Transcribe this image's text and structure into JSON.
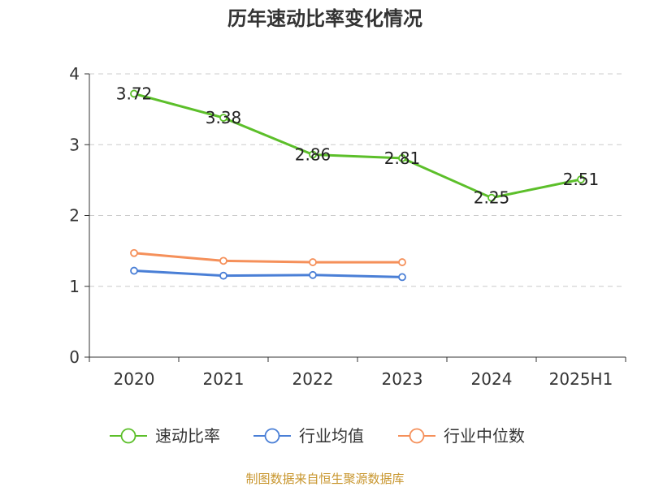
{
  "chart_data": {
    "type": "line",
    "title": "历年速动比率变化情况",
    "categories": [
      "2020",
      "2021",
      "2022",
      "2023",
      "2024",
      "2025H1"
    ],
    "ylim": [
      0,
      4
    ],
    "yticks": [
      0,
      1,
      2,
      3,
      4
    ],
    "grid": true,
    "legend_position": "bottom",
    "series": [
      {
        "name": "速动比率",
        "color": "#5cbf2a",
        "values": [
          3.72,
          3.38,
          2.86,
          2.81,
          2.25,
          2.51
        ],
        "labels": [
          "3.72",
          "3.38",
          "2.86",
          "2.81",
          "2.25",
          "2.51"
        ]
      },
      {
        "name": "行业均值",
        "color": "#4a7fd6",
        "values": [
          1.22,
          1.15,
          1.16,
          1.13,
          null,
          null
        ]
      },
      {
        "name": "行业中位数",
        "color": "#f5905a",
        "values": [
          1.47,
          1.36,
          1.34,
          1.34,
          null,
          null
        ]
      }
    ]
  },
  "source": "制图数据来自恒生聚源数据库"
}
